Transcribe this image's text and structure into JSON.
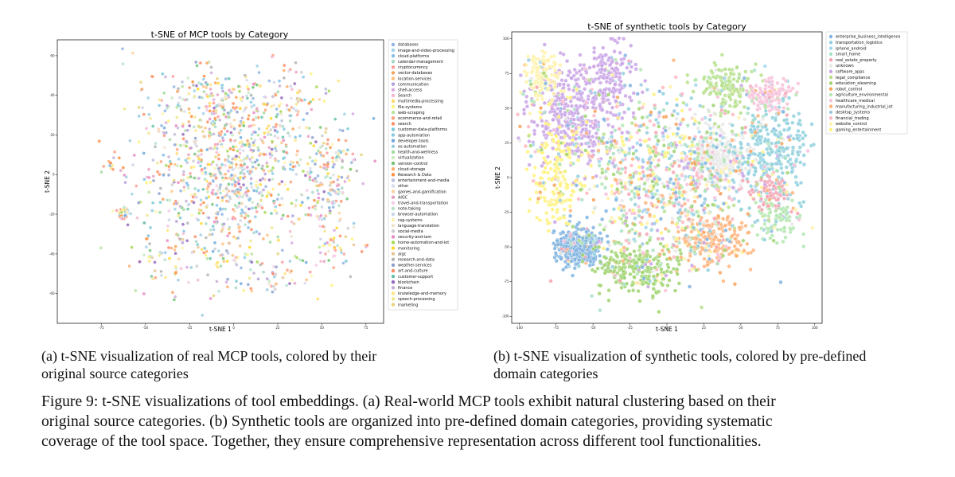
{
  "panels": [
    {
      "id": "a",
      "chart_data": {
        "type": "scatter",
        "title": "t-SNE of MCP tools by Category",
        "xlabel": "t-SNE 1",
        "ylabel": "t-SNE 2",
        "xlim": [
          -100,
          85
        ],
        "ylim": [
          -75,
          68
        ],
        "x_ticks": [
          -75,
          -50,
          -25,
          0,
          25,
          50,
          75
        ],
        "y_ticks": [
          -60,
          -40,
          -20,
          0,
          20,
          40,
          60
        ],
        "legend_position": "right",
        "grid": false,
        "categories": [
          "databases",
          "image-and-video-processing",
          "cloud-platforms",
          "calendar-management",
          "cryptocurrency",
          "vector-databases",
          "location-services",
          "communication",
          "shell-access",
          "Search",
          "multimedia-processing",
          "file-systems",
          "web-scraping",
          "ecommerce-and-retail",
          "search",
          "customer-data-platforms",
          "app-automation",
          "developer-tools",
          "os-automation",
          "health-and-wellness",
          "virtualization",
          "version-control",
          "cloud-storage",
          "Research & Data",
          "entertainment-and-media",
          "other",
          "games-and-gamification",
          "AIGC",
          "travel-and-transportation",
          "note-taking",
          "browser-automation",
          "rag-systems",
          "language-translation",
          "social-media",
          "security-and-iam",
          "home-automation-and-iot",
          "monitoring",
          "aigc",
          "research-and-data",
          "weather-services",
          "art-and-culture",
          "customer-support",
          "blockchain",
          "finance",
          "knowledge-and-memory",
          "speech-processing",
          "marketing"
        ],
        "colors": [
          "#8fb4e3",
          "#9fd1e8",
          "#7fc1e8",
          "#a3d7c4",
          "#ff9b9b",
          "#f7a35c",
          "#ffbf7f",
          "#b39ddb",
          "#d7a9e3",
          "#f5b7d1",
          "#ffd966",
          "#fff27a",
          "#b7e39b",
          "#ffa07a",
          "#ff8c69",
          "#77c8d6",
          "#8cc9e8",
          "#6fa8dc",
          "#9ecae1",
          "#a1d99b",
          "#c7e9c0",
          "#74c476",
          "#fdae6b",
          "#fd8d3c",
          "#bcbddc",
          "#dadaeb",
          "#fdd0a2",
          "#e6a0c4",
          "#f4cae4",
          "#b3e2cd",
          "#cbd5e8",
          "#fff2ae",
          "#f1e2cc",
          "#cccccc",
          "#e78ac3",
          "#a6d854",
          "#ffd92f",
          "#e5c494",
          "#b3b3b3",
          "#8da0cb",
          "#fc8d62",
          "#66c2a5",
          "#9467bd",
          "#c5b0d5",
          "#ffe680",
          "#f0e68c",
          "#e8d27a"
        ],
        "clusters": [
          {
            "x": 0,
            "y": 0,
            "sx": 26,
            "sy": 22,
            "n": 900
          },
          {
            "x": -15,
            "y": 35,
            "sx": 18,
            "sy": 10,
            "n": 160
          },
          {
            "x": 58,
            "y": 10,
            "sx": 6,
            "sy": 8,
            "n": 60
          },
          {
            "x": 55,
            "y": -10,
            "sx": 6,
            "sy": 8,
            "n": 70
          },
          {
            "x": 60,
            "y": -35,
            "sx": 6,
            "sy": 6,
            "n": 40
          },
          {
            "x": -63,
            "y": -20,
            "sx": 2,
            "sy": 2,
            "n": 35
          },
          {
            "x": -70,
            "y": 5,
            "sx": 2,
            "sy": 2,
            "n": 10
          },
          {
            "x": -40,
            "y": -45,
            "sx": 12,
            "sy": 8,
            "n": 50
          },
          {
            "x": 15,
            "y": -50,
            "sx": 20,
            "sy": 8,
            "n": 80
          },
          {
            "x": 30,
            "y": 35,
            "sx": 12,
            "sy": 10,
            "n": 80
          }
        ]
      },
      "caption_lines": [
        "(a) t-SNE visualization of real MCP tools, colored by their",
        "original source categories"
      ]
    },
    {
      "id": "b",
      "chart_data": {
        "type": "scatter",
        "title": "t-SNE of synthetic tools by Category",
        "xlabel": "t-SNE 1",
        "ylabel": "t-SNE 2",
        "xlim": [
          -105,
          105
        ],
        "ylim": [
          -105,
          105
        ],
        "x_ticks": [
          -100,
          -75,
          -50,
          -25,
          0,
          25,
          50,
          75,
          100
        ],
        "y_ticks": [
          -100,
          -75,
          -50,
          -25,
          0,
          25,
          50,
          75,
          100
        ],
        "legend_position": "upper-right",
        "grid": false,
        "categories": [
          "enterprise_business_intelligence",
          "transportation_logistics",
          "iphone_android",
          "smart_home",
          "real_estate_property",
          "unknown",
          "software_apps",
          "legal_compliance",
          "education_elearning",
          "robot_control",
          "agriculture_environmental",
          "healthcare_medical",
          "manufacturing_industrial_iot",
          "desktop_systems",
          "financial_trading",
          "website_control",
          "gaming_entertainment"
        ],
        "colors": [
          "#7fb3e0",
          "#8ed0dd",
          "#a3d6ec",
          "#a8e0c4",
          "#f4a3b4",
          "#e8e8e8",
          "#c9a3e6",
          "#b6e08c",
          "#9fd46e",
          "#f7a35c",
          "#b3e6b0",
          "#f7c1d9",
          "#ffb37a",
          "#9ecae1",
          "#ffb6c1",
          "#fff2a8",
          "#fff27a"
        ],
        "clusters": [
          {
            "x": -60,
            "y": -50,
            "sx": 8,
            "sy": 7,
            "n": 380,
            "c": 0
          },
          {
            "x": -65,
            "y": 45,
            "sx": 16,
            "sy": 18,
            "n": 420,
            "c": 6
          },
          {
            "x": -40,
            "y": 75,
            "sx": 8,
            "sy": 12,
            "n": 150,
            "c": 6
          },
          {
            "x": 35,
            "y": 15,
            "sx": 10,
            "sy": 10,
            "n": 300,
            "c": 5
          },
          {
            "x": 70,
            "y": 20,
            "sx": 12,
            "sy": 18,
            "n": 300,
            "c": 1
          },
          {
            "x": 40,
            "y": 65,
            "sx": 10,
            "sy": 10,
            "n": 160,
            "c": 7
          },
          {
            "x": 70,
            "y": 60,
            "sx": 8,
            "sy": 6,
            "n": 130,
            "c": 11
          },
          {
            "x": 30,
            "y": -45,
            "sx": 12,
            "sy": 10,
            "n": 220,
            "c": 12
          },
          {
            "x": -20,
            "y": -65,
            "sx": 14,
            "sy": 10,
            "n": 260,
            "c": 8
          },
          {
            "x": -75,
            "y": 0,
            "sx": 10,
            "sy": 20,
            "n": 200,
            "c": 16
          },
          {
            "x": -85,
            "y": 75,
            "sx": 6,
            "sy": 8,
            "n": 120,
            "c": 15
          },
          {
            "x": 75,
            "y": -30,
            "sx": 8,
            "sy": 8,
            "n": 100,
            "c": 10
          },
          {
            "x": 70,
            "y": -10,
            "sx": 8,
            "sy": 6,
            "n": 90,
            "c": 4
          },
          {
            "x": 0,
            "y": 0,
            "sx": 30,
            "sy": 30,
            "n": 900,
            "c": -1
          }
        ]
      },
      "caption_lines": [
        "(b) t-SNE visualization of synthetic tools, colored by pre-defined",
        "domain categories"
      ]
    }
  ],
  "figure_caption": {
    "lines": [
      "Figure 9: t-SNE visualizations of tool embeddings. (a) Real-world MCP tools exhibit natural clustering based on their",
      "original source categories. (b) Synthetic tools are organized into pre-defined domain categories, providing systematic",
      "coverage of the tool space. Together, they ensure comprehensive representation across different tool functionalities."
    ]
  }
}
